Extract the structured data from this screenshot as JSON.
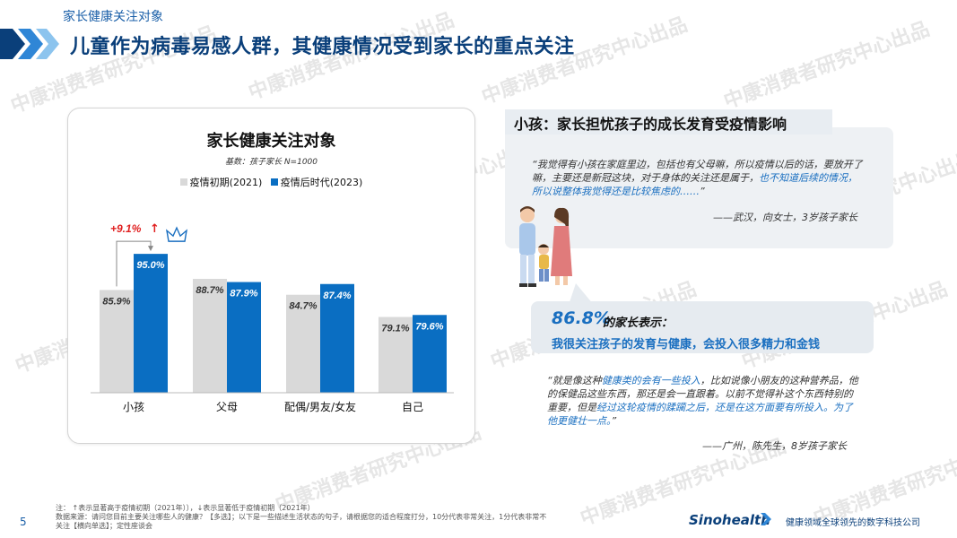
{
  "header": {
    "section_label": "家长健康关注对象",
    "title": "儿童作为病毒易感人群，其健康情况受到家长的重点关注"
  },
  "watermark_text": "中康消费者研究中心出品",
  "colors": {
    "accent": "#0a6ec2",
    "grey_bar": "#d9d9d9",
    "navy": "#0a3f7a",
    "red": "#e02020"
  },
  "chart_data": {
    "type": "bar",
    "title": "家长健康关注对象",
    "base_note": "基数：孩子家长  N=1000",
    "categories": [
      "小孩",
      "父母",
      "配偶/男友/女友",
      "自己"
    ],
    "series": [
      {
        "name": "疫情初期(2021)",
        "values": [
          85.9,
          88.7,
          84.7,
          79.1
        ],
        "labels": [
          "85.9%",
          "88.7%",
          "84.7%",
          "79.1%"
        ],
        "color": "#d9d9d9"
      },
      {
        "name": "疫情后时代(2023)",
        "values": [
          95.0,
          87.9,
          87.4,
          79.6
        ],
        "labels": [
          "95.0%",
          "87.9%",
          "87.4%",
          "79.6%"
        ],
        "color": "#0a6ec2"
      }
    ],
    "annotation": {
      "text": "+9.1%",
      "arrow": "↑",
      "category": "小孩"
    },
    "ylim": [
      60,
      100
    ],
    "grid": false,
    "legend_position": "top"
  },
  "callout": {
    "heading": "小孩：家长担忧孩子的成长发育受疫情影响",
    "quote1_plain": "“我觉得有小孩在家庭里边，包括也有父母嘛，所以疫情以后的话，要放开了嘛，主要还是新冠这块，对于身体的关注还是属于，",
    "quote1_hl": "也不知道后续的情况，所以说整体我觉得还是比较焦虑的……",
    "quote1_end": "”",
    "attrib1": "——武汉，向女士，3岁孩子家长",
    "stat_pct": "86.8%",
    "stat_label": "的家长表示：",
    "stat_text": "我很关注孩子的发育与健康，会投入很多精力和金钱",
    "quote2_a": "“就是像这种",
    "quote2_hl1": "健康类的会有一些投入",
    "quote2_b": "，比如说像小朋友的这种营养品，他的保健品这些东西，那还是会一直跟着。以前不觉得补这个东西特别的重要，但是",
    "quote2_hl2": "经过这轮疫情的蹂躏之后，还是在这方面要有所投入。为了他更健壮一点。",
    "quote2_end": "”",
    "attrib2": "——广州，陈先生，8岁孩子家长"
  },
  "footer": {
    "note_line1": "注：  ↑表示显著高于疫情初期（2021年）），↓表示显著低于疫情初期（2021年）",
    "note_line2": "数据来源：请问您目前主要关注哪些人的健康？【多选】；以下是一些描述生活状态的句子，请根据您的适合程度打分，10分代表非常关注，1分代表非常不",
    "note_line3": "关注【横向单选】；定性座谈会",
    "page_number": "5",
    "brand": "Sinohealth",
    "tagline": "健康领域全球领先的数字科技公司"
  }
}
